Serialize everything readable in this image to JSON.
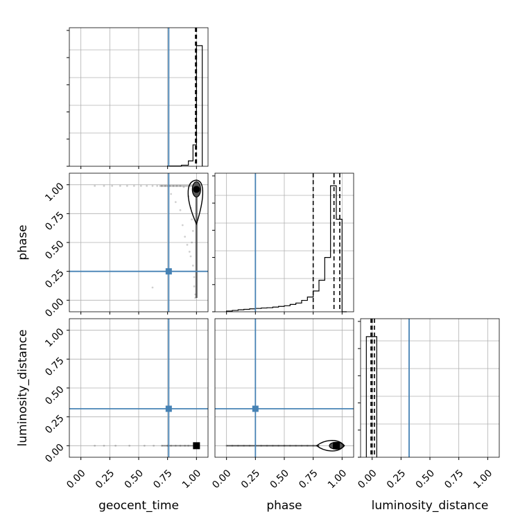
{
  "chart_data": {
    "type": "corner",
    "parameters": [
      "geocent_time",
      "phase",
      "luminosity_distance"
    ],
    "ticks": {
      "values": [
        0.0,
        0.25,
        0.5,
        0.75,
        1.0
      ],
      "labels": [
        "0.00",
        "0.25",
        "0.50",
        "0.75",
        "1.00"
      ]
    },
    "truths": {
      "geocent_time": 0.76,
      "phase": 0.25,
      "luminosity_distance": 0.32
    },
    "truth_color": "#4682b4",
    "grid": true,
    "histograms": {
      "geocent_time": {
        "xlim": [
          -0.1,
          1.1
        ],
        "bins": [
          [
            0.75,
            0.87,
            0.002
          ],
          [
            0.87,
            0.93,
            0.008
          ],
          [
            0.93,
            0.97,
            0.04
          ],
          [
            0.97,
            1.0,
            0.16
          ],
          [
            1.0,
            1.05,
            0.9
          ]
        ],
        "quantiles": [
          0.992,
          0.997,
          1.0
        ]
      },
      "phase": {
        "xlim": [
          -0.1,
          1.1
        ],
        "bins": [
          [
            0.0,
            0.05,
            0.005
          ],
          [
            0.05,
            0.1,
            0.01
          ],
          [
            0.1,
            0.15,
            0.015
          ],
          [
            0.15,
            0.2,
            0.018
          ],
          [
            0.2,
            0.25,
            0.022
          ],
          [
            0.25,
            0.3,
            0.025
          ],
          [
            0.3,
            0.35,
            0.028
          ],
          [
            0.35,
            0.4,
            0.03
          ],
          [
            0.4,
            0.45,
            0.035
          ],
          [
            0.45,
            0.5,
            0.04
          ],
          [
            0.5,
            0.55,
            0.045
          ],
          [
            0.55,
            0.6,
            0.055
          ],
          [
            0.6,
            0.65,
            0.065
          ],
          [
            0.65,
            0.7,
            0.085
          ],
          [
            0.7,
            0.75,
            0.11
          ],
          [
            0.75,
            0.8,
            0.155
          ],
          [
            0.8,
            0.85,
            0.235
          ],
          [
            0.85,
            0.9,
            0.405
          ],
          [
            0.9,
            0.95,
            0.94
          ],
          [
            0.95,
            1.0,
            0.69
          ],
          [
            1.0,
            1.04,
            0.0
          ]
        ],
        "quantiles": [
          0.75,
          0.93,
          0.98
        ]
      },
      "luminosity_distance": {
        "xlim": [
          -0.1,
          1.1
        ],
        "bins": [
          [
            -0.05,
            0.04,
            0.9
          ]
        ],
        "quantiles": [
          -0.01,
          0.0,
          0.02
        ]
      }
    },
    "scatter": {
      "phase_vs_geocent_time": [
        [
          0.12,
          0.99
        ],
        [
          0.2,
          0.99
        ],
        [
          0.27,
          0.99
        ],
        [
          0.34,
          0.99
        ],
        [
          0.4,
          0.99
        ],
        [
          0.46,
          0.99
        ],
        [
          0.52,
          0.99
        ],
        [
          0.57,
          0.99
        ],
        [
          0.62,
          0.99
        ],
        [
          0.66,
          0.99
        ],
        [
          0.7,
          0.99
        ],
        [
          0.73,
          0.99
        ],
        [
          0.77,
          0.99
        ],
        [
          0.8,
          0.99
        ],
        [
          0.83,
          0.99
        ],
        [
          0.86,
          0.99
        ],
        [
          0.89,
          0.98
        ],
        [
          0.62,
          0.11
        ],
        [
          0.78,
          0.92
        ],
        [
          0.82,
          0.85
        ],
        [
          0.86,
          0.78
        ],
        [
          0.88,
          0.65
        ],
        [
          0.9,
          0.55
        ],
        [
          0.92,
          0.48
        ],
        [
          0.94,
          0.42
        ],
        [
          0.95,
          0.38
        ],
        [
          0.93,
          0.9
        ],
        [
          0.96,
          0.7
        ],
        [
          0.97,
          0.6
        ],
        [
          0.97,
          0.3
        ],
        [
          0.98,
          0.2
        ],
        [
          0.98,
          0.12
        ],
        [
          0.99,
          0.05
        ],
        [
          0.99,
          0.02
        ],
        [
          0.96,
          0.5
        ],
        [
          0.95,
          0.8
        ]
      ],
      "luminosity_distance_vs_geocent_time": [
        [
          0.12,
          0.0
        ],
        [
          0.2,
          0.0
        ],
        [
          0.3,
          0.0
        ],
        [
          0.42,
          0.0
        ],
        [
          0.55,
          0.0
        ],
        [
          0.63,
          0.0
        ],
        [
          0.7,
          0.0
        ],
        [
          0.75,
          0.0
        ],
        [
          0.78,
          0.0
        ],
        [
          0.82,
          0.0
        ],
        [
          0.86,
          0.0
        ],
        [
          0.9,
          0.0
        ],
        [
          0.93,
          0.0
        ]
      ],
      "luminosity_distance_vs_phase": [
        [
          0.0,
          0.0
        ],
        [
          0.05,
          0.0
        ],
        [
          0.1,
          0.0
        ],
        [
          0.15,
          0.0
        ],
        [
          0.2,
          0.0
        ],
        [
          0.25,
          0.0
        ],
        [
          0.3,
          0.0
        ],
        [
          0.35,
          0.0
        ],
        [
          0.4,
          0.0
        ],
        [
          0.45,
          0.0
        ],
        [
          0.5,
          0.0
        ],
        [
          0.55,
          0.0
        ],
        [
          0.6,
          0.0
        ],
        [
          0.65,
          0.0
        ],
        [
          0.7,
          0.0
        ],
        [
          0.75,
          0.0
        ],
        [
          0.8,
          0.0
        ]
      ]
    },
    "density_peaks": {
      "phase_vs_geocent_time": [
        1.0,
        0.96
      ],
      "luminosity_distance_vs_geocent_time": [
        1.0,
        0.0
      ],
      "luminosity_distance_vs_phase": [
        0.95,
        0.0
      ]
    }
  }
}
